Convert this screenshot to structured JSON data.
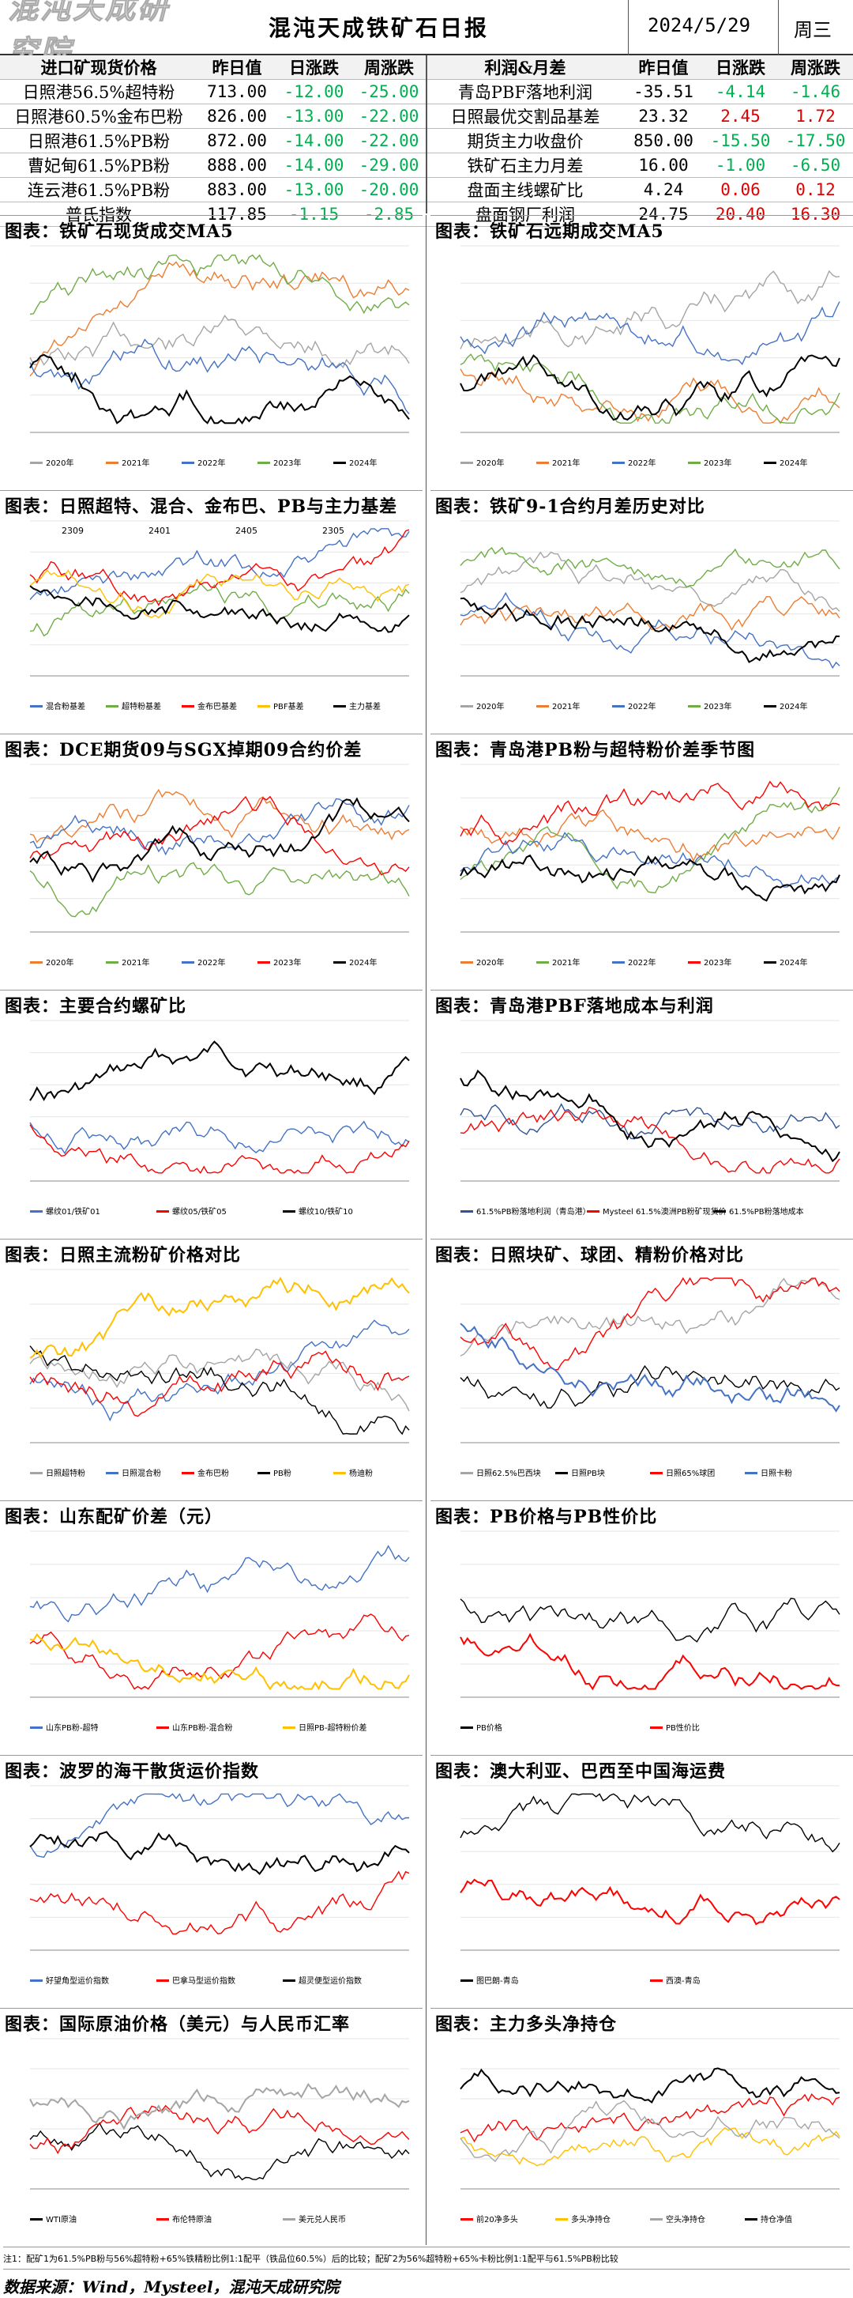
{
  "header": {
    "logo": "混沌天成研究院",
    "title": "混沌天成铁矿石日报",
    "date": "2024/5/29",
    "weekday": "周三"
  },
  "left_table": {
    "headers": [
      "进口矿现货价格",
      "昨日值",
      "日涨跌",
      "周涨跌"
    ],
    "rows": [
      [
        "日照港56.5%超特粉",
        "713.00",
        "-12.00",
        "-25.00"
      ],
      [
        "日照港60.5%金布巴粉",
        "826.00",
        "-13.00",
        "-22.00"
      ],
      [
        "日照港61.5%PB粉",
        "872.00",
        "-14.00",
        "-22.00"
      ],
      [
        "曹妃甸61.5%PB粉",
        "888.00",
        "-14.00",
        "-29.00"
      ],
      [
        "连云港61.5%PB粉",
        "883.00",
        "-13.00",
        "-20.00"
      ],
      [
        "普氏指数",
        "117.85",
        "-1.15",
        "-2.85"
      ]
    ]
  },
  "right_table": {
    "headers": [
      "利润&月差",
      "昨日值",
      "日涨跌",
      "周涨跌"
    ],
    "rows": [
      [
        "青岛PBF落地利润",
        "-35.51",
        "-4.14",
        "-1.46"
      ],
      [
        "日照最优交割品基差",
        "23.32",
        "2.45",
        "1.72"
      ],
      [
        "期货主力收盘价",
        "850.00",
        "-15.50",
        "-17.50"
      ],
      [
        "铁矿石主力月差",
        "16.00",
        "-1.00",
        "-6.50"
      ],
      [
        "盘面主线螺矿比",
        "4.24",
        "0.06",
        "0.12"
      ],
      [
        "盘面钢厂利润",
        "24.75",
        "20.40",
        "16.30"
      ]
    ]
  },
  "panels": [
    {
      "title": "图表：铁矿石现货成交MA5",
      "legend": [
        "2020年",
        "2021年",
        "2022年",
        "2023年",
        "2024年"
      ]
    },
    {
      "title": "图表：铁矿石远期成交MA5",
      "legend": [
        "2020年",
        "2021年",
        "2022年",
        "2023年",
        "2024年"
      ]
    },
    {
      "title": "图表：日照超特、混合、金布巴、PB与主力基差",
      "legend": [
        "混合粉基差",
        "超特粉基差",
        "金布巴基差",
        "PBF基差",
        "主力基差"
      ],
      "annotations": [
        "2309",
        "2401",
        "2405",
        "2305"
      ]
    },
    {
      "title": "图表：铁矿9-1合约月差历史对比",
      "legend": [
        "2020年",
        "2021年",
        "2022年",
        "2023年",
        "2024年"
      ]
    },
    {
      "title": "图表：DCE期货09与SGX掉期09合约价差",
      "legend": [
        "2020年",
        "2021年",
        "2022年",
        "2023年",
        "2024年"
      ]
    },
    {
      "title": "图表：青岛港PB粉与超特粉价差季节图",
      "legend": [
        "2020年",
        "2021年",
        "2022年",
        "2023年",
        "2024年"
      ]
    },
    {
      "title": "图表：主要合约螺矿比",
      "legend": [
        "螺纹01/铁矿01",
        "螺纹05/铁矿05",
        "螺纹10/铁矿10"
      ]
    },
    {
      "title": "图表：青岛港PBF落地成本与利润",
      "legend": [
        "61.5%PB粉落地利润（青岛港）",
        "Mysteel 61.5%澳洲PB粉矿现货价",
        "61.5%PB粉落地成本"
      ]
    },
    {
      "title": "图表：日照主流粉矿价格对比",
      "legend": [
        "日照超特粉",
        "日照混合粉",
        "金布巴粉",
        "PB粉",
        "杨迪粉"
      ]
    },
    {
      "title": "图表：日照块矿、球团、精粉价格对比",
      "legend": [
        "日照62.5%巴西块",
        "日照PB块",
        "日照65%球团",
        "日照卡粉"
      ]
    },
    {
      "title": "图表：山东配矿价差（元）",
      "legend": [
        "山东PB粉-超特",
        "山东PB粉-混合粉",
        "日照PB-超特粉价差"
      ]
    },
    {
      "title": "图表：PB价格与PB性价比",
      "legend": [
        "PB价格",
        "PB性价比"
      ]
    },
    {
      "title": "图表：波罗的海干散货运价指数",
      "legend": [
        "好望角型运价指数",
        "巴拿马型运价指数",
        "超灵便型运价指数"
      ]
    },
    {
      "title": "图表：澳大利亚、巴西至中国海运费",
      "legend": [
        "图巴朗-青岛",
        "西澳-青岛"
      ]
    },
    {
      "title": "图表：国际原油价格（美元）与人民币汇率",
      "legend": [
        "WTI原油",
        "布伦特原油",
        "美元兑人民币"
      ]
    },
    {
      "title": "图表：主力多头净持仓",
      "legend": [
        "前20净多头",
        "多头净持仓",
        "空头净持仓",
        "持仓净值"
      ]
    }
  ],
  "footnote": "注1：配矿1为61.5%PB粉与56%超特粉+65%铁精粉比例1:1配平（铁品位60.5%）后的比较；配矿2为56%超特粉+65%卡粉比例1:1配平与61.5%PB粉比较",
  "source": "数据来源：Wind，Mysteel，混沌天成研究院",
  "colors": {
    "orange": "#ed7d31",
    "green": "#70ad47",
    "blue": "#4472c4",
    "red": "#ff0000",
    "black": "#000000",
    "gold": "#ffc000",
    "gray": "#a5a5a5",
    "navy": "#2f5597"
  }
}
